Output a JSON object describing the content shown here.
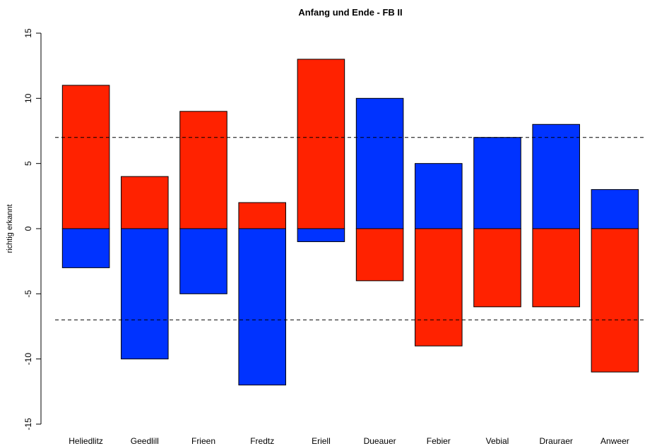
{
  "chart_data": {
    "type": "bar",
    "title": "Anfang und Ende - FB II",
    "xlabel": "",
    "ylabel": "richtig erkannt",
    "ylim": [
      -15,
      15
    ],
    "yticks": [
      -15,
      -10,
      -5,
      0,
      5,
      10,
      15
    ],
    "reference_lines": [
      7,
      -7
    ],
    "colors": {
      "red": "#ff2200",
      "blue": "#0033ff"
    },
    "categories": [
      "Heliedlitz",
      "Geedlill",
      "Frieen",
      "Fredtz",
      "Eriell",
      "Dueauer",
      "Febier",
      "Vebial",
      "Drauraer",
      "Anweer"
    ],
    "bars": [
      {
        "positive": 11,
        "positive_color": "red",
        "negative": -3,
        "negative_color": "blue"
      },
      {
        "positive": 4,
        "positive_color": "red",
        "negative": -10,
        "negative_color": "blue"
      },
      {
        "positive": 9,
        "positive_color": "red",
        "negative": -5,
        "negative_color": "blue"
      },
      {
        "positive": 2,
        "positive_color": "red",
        "negative": -12,
        "negative_color": "blue"
      },
      {
        "positive": 13,
        "positive_color": "red",
        "negative": -1,
        "negative_color": "blue"
      },
      {
        "positive": 10,
        "positive_color": "blue",
        "negative": -4,
        "negative_color": "red"
      },
      {
        "positive": 5,
        "positive_color": "blue",
        "negative": -9,
        "negative_color": "red"
      },
      {
        "positive": 7,
        "positive_color": "blue",
        "negative": -6,
        "negative_color": "red"
      },
      {
        "positive": 8,
        "positive_color": "blue",
        "negative": -6,
        "negative_color": "red"
      },
      {
        "positive": 3,
        "positive_color": "blue",
        "negative": -11,
        "negative_color": "red"
      }
    ]
  }
}
